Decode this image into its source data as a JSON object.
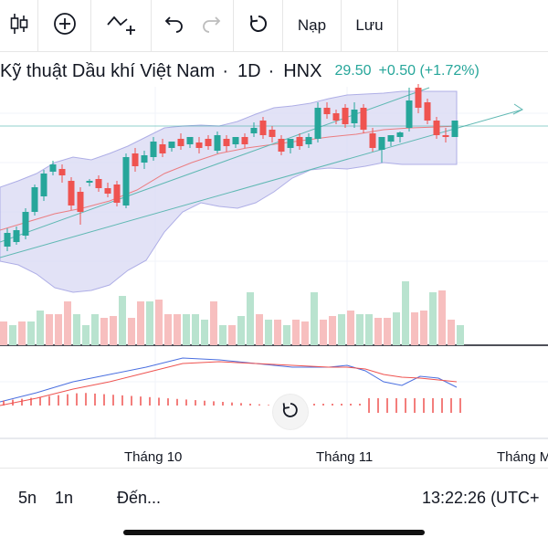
{
  "toolbar": {
    "icons": [
      "candlestick-icon",
      "add-indicator-icon",
      "drawing-icon",
      "undo-icon",
      "redo-icon",
      "reload-icon"
    ],
    "load_label": "Nạp",
    "save_label": "Lưu"
  },
  "legend": {
    "name": "Kỹ thuật Dầu khí Việt Nam",
    "separator": "·",
    "timeframe": "1D",
    "exchange": "HNX",
    "last_price": "29.50",
    "change": "+0.50 (+1.72%)"
  },
  "time_axis": {
    "labels": [
      "Tháng 10",
      "Tháng 11",
      "Tháng M"
    ]
  },
  "bottom_bar": {
    "range_5d": "5n",
    "range_1m": "1n",
    "goto": "Đến...",
    "clock": "13:22:26 (UTC+"
  },
  "colors": {
    "up": "#26a69a",
    "down": "#ef5350",
    "up_volume": "#b9e3cf",
    "down_volume": "#f7bfbf",
    "bollinger_fill": "#dcdcf5",
    "bollinger_line": "#9a9ae0",
    "trend_line": "#5fb8b3",
    "macd_line": "#4a6fe0",
    "signal_line": "#ef5350"
  }
}
